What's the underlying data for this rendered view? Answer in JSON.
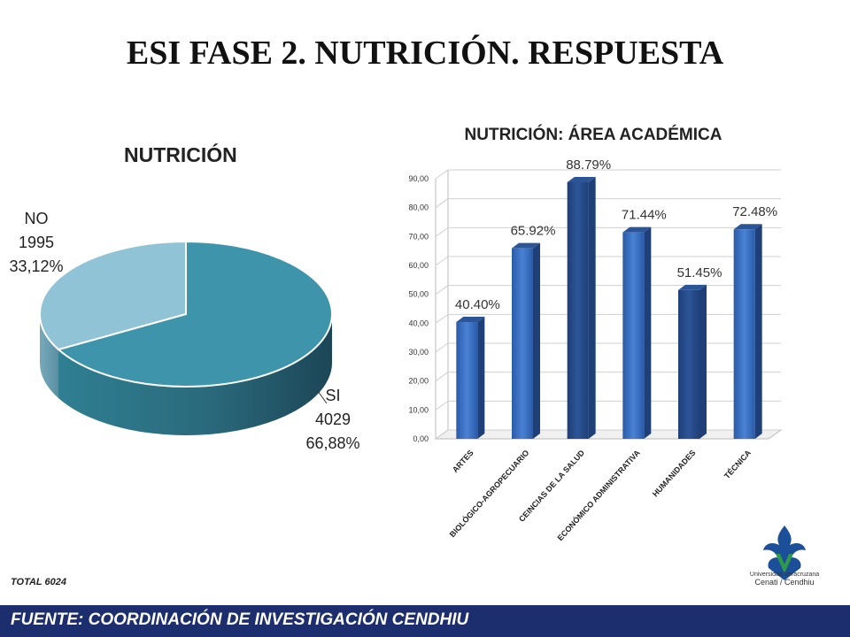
{
  "title": "ESI FASE 2. NUTRICIÓN. RESPUESTA",
  "chart_data": [
    {
      "type": "pie",
      "title": "NUTRICIÓN",
      "slices": [
        {
          "name": "SI",
          "count": "4029",
          "percent_label": "66,88%",
          "value": 66.88,
          "color": "#3e94ab"
        },
        {
          "name": "NO",
          "count": "1995",
          "percent_label": "33,12%",
          "value": 33.12,
          "color": "#90c3d5"
        }
      ]
    },
    {
      "type": "bar",
      "title": "NUTRICIÓN: ÁREA ACADÉMICA",
      "categories": [
        "ARTES",
        "BIOLÓGICO-AGROPECUARIO",
        "CEINCIAS DE LA SALUD",
        "ECONÓMICO ADMINISTRATIVA",
        "HUMANIDADES",
        "TÉCNICA"
      ],
      "values": [
        40.4,
        65.92,
        88.79,
        71.44,
        51.45,
        72.48
      ],
      "data_labels": [
        "40.40%",
        "65.92%",
        "88.79%",
        "71.44%",
        "51.45%",
        "72.48%"
      ],
      "yticks": [
        "0,00",
        "10,00",
        "20,00",
        "30,00",
        "40,00",
        "50,00",
        "60,00",
        "70,00",
        "80,00",
        "90,00"
      ],
      "ylim": [
        0,
        90
      ],
      "grid": true,
      "bar_color": "#3a6fbf"
    }
  ],
  "total": "TOTAL  6024",
  "footer": "FUENTE:   COORDINACIÓN DE INVESTIGACIÓN CENDHIU",
  "logo": {
    "name": "Universidad Veracruzana",
    "subtitle": "Cenati / Cendhiu"
  }
}
